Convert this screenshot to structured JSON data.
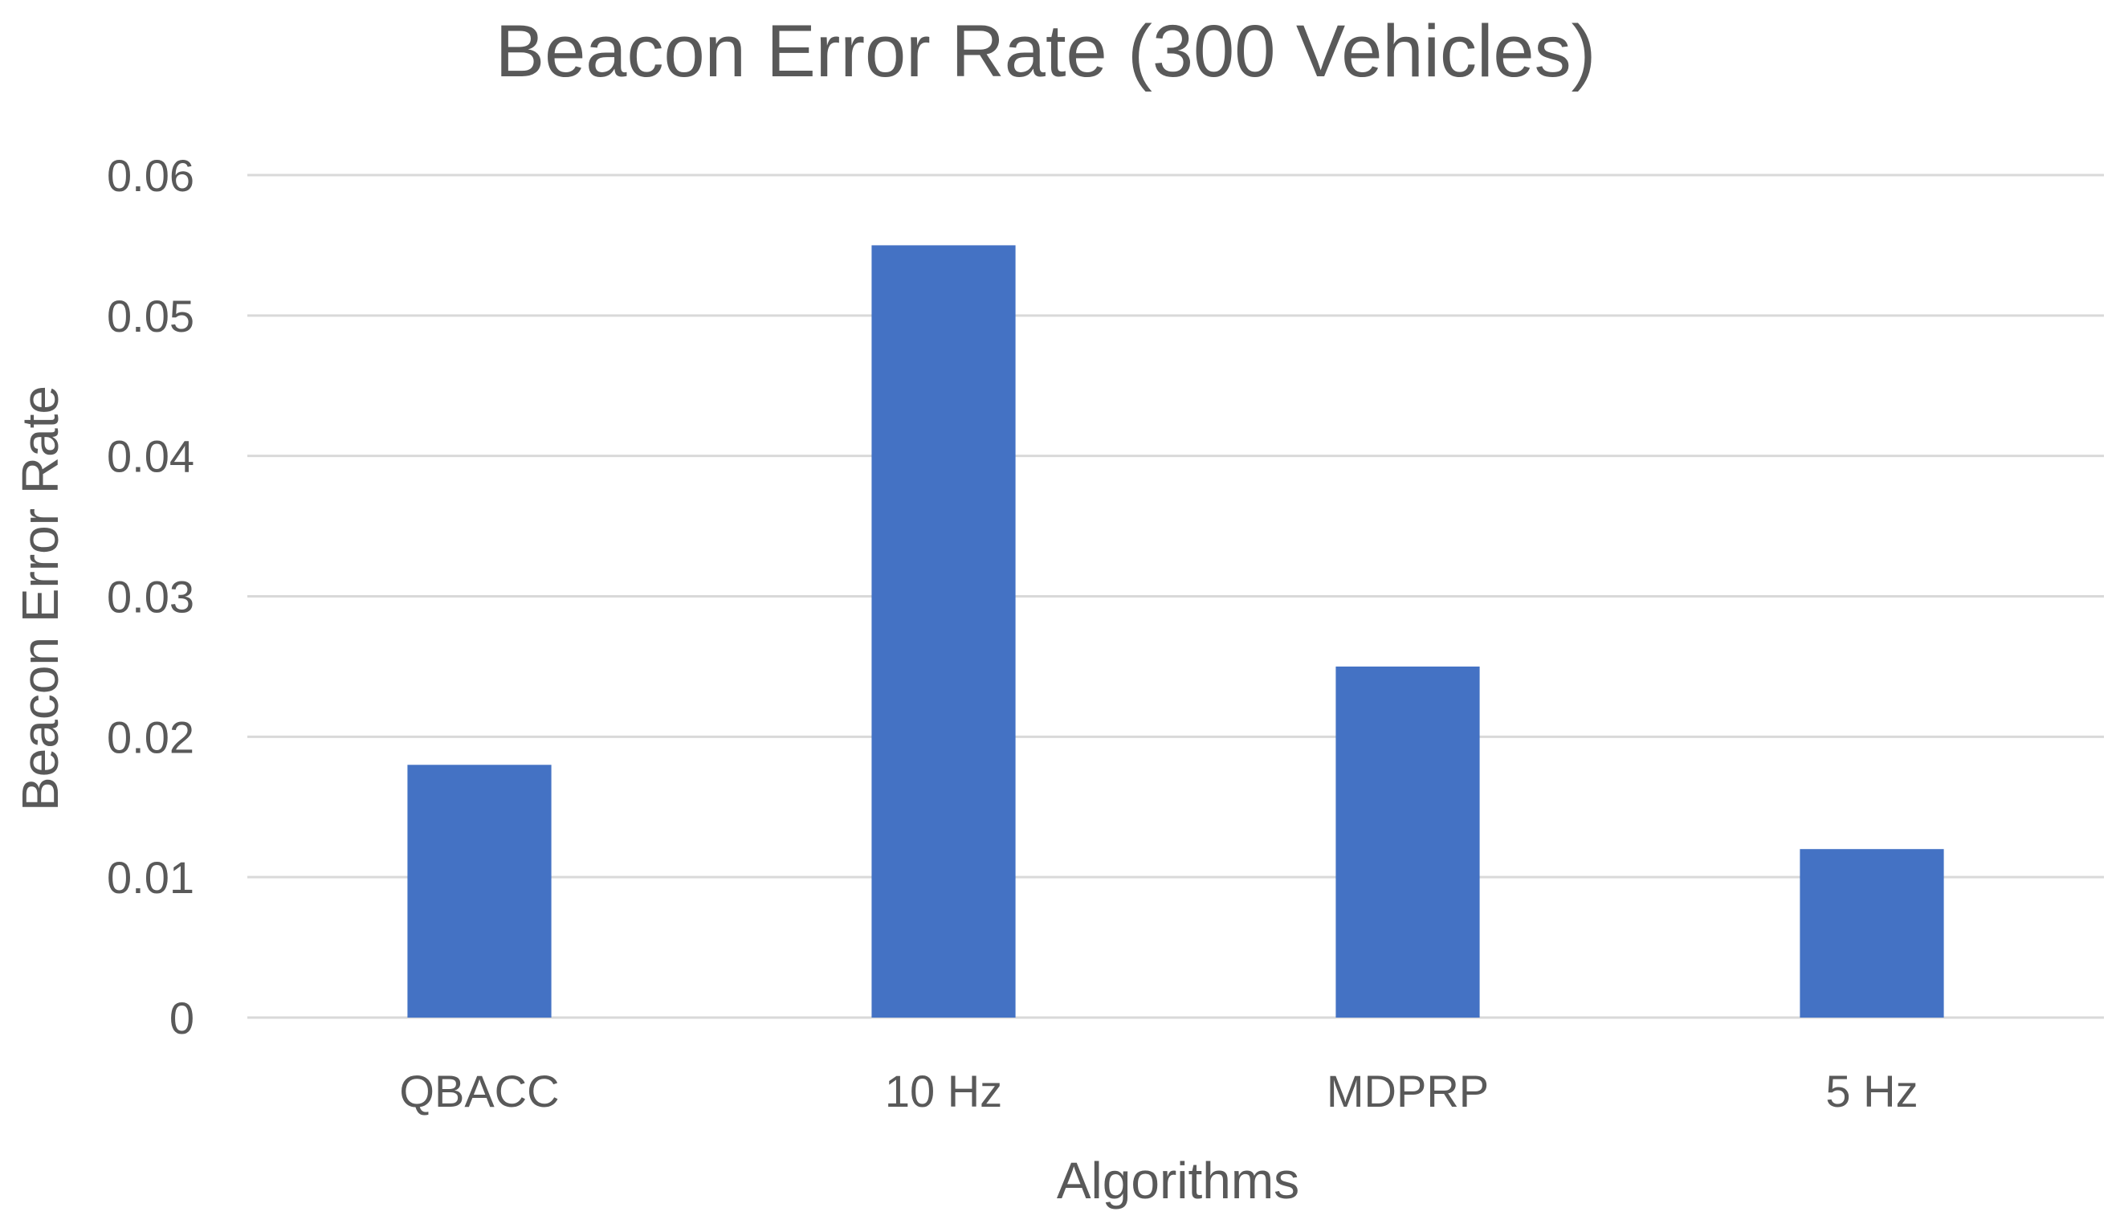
{
  "chart_data": {
    "type": "bar",
    "title": "Beacon Error Rate (300 Vehicles)",
    "xlabel": "Algorithms",
    "ylabel": "Beacon Error Rate",
    "categories": [
      "QBACC",
      "10 Hz",
      "MDPRP",
      "5 Hz"
    ],
    "values": [
      0.018,
      0.055,
      0.025,
      0.012
    ],
    "ylim": [
      0,
      0.06
    ],
    "yticks": [
      "0",
      "0.01",
      "0.02",
      "0.03",
      "0.04",
      "0.05",
      "0.06"
    ],
    "grid": true,
    "bar_color": "#4472c4"
  }
}
